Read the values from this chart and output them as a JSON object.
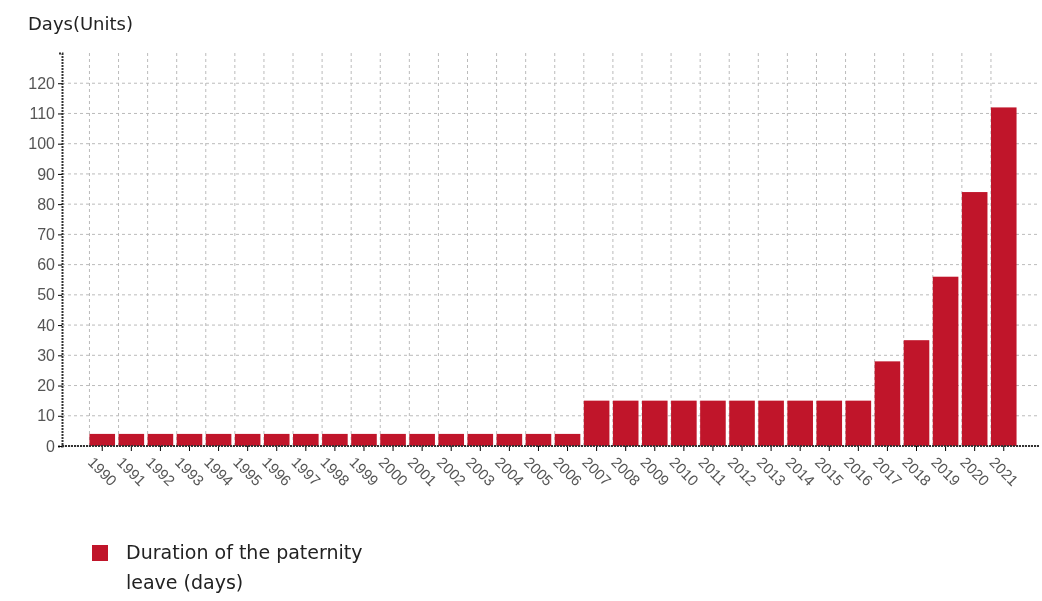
{
  "chart_data": {
    "type": "bar",
    "ylabel": "Days(Units)",
    "categories": [
      "1990",
      "1991",
      "1992",
      "1993",
      "1994",
      "1995",
      "1996",
      "1997",
      "1998",
      "1999",
      "2000",
      "2001",
      "2002",
      "2003",
      "2004",
      "2005",
      "2006",
      "2007",
      "2008",
      "2009",
      "2010",
      "2011",
      "2012",
      "2013",
      "2014",
      "2015",
      "2016",
      "2017",
      "2018",
      "2019",
      "2020",
      "2021"
    ],
    "series": [
      {
        "name": "Duration of the paternity leave (days)",
        "color": "#c0152a",
        "values": [
          4,
          4,
          4,
          4,
          4,
          4,
          4,
          4,
          4,
          4,
          4,
          4,
          4,
          4,
          4,
          4,
          4,
          15,
          15,
          15,
          15,
          15,
          15,
          15,
          15,
          15,
          15,
          28,
          35,
          56,
          84,
          112
        ]
      }
    ],
    "ylim": [
      0,
      130
    ],
    "yticks": [
      0,
      10,
      20,
      30,
      40,
      50,
      60,
      70,
      80,
      90,
      100,
      110,
      120
    ],
    "grid": true,
    "legend": "bottom left"
  }
}
